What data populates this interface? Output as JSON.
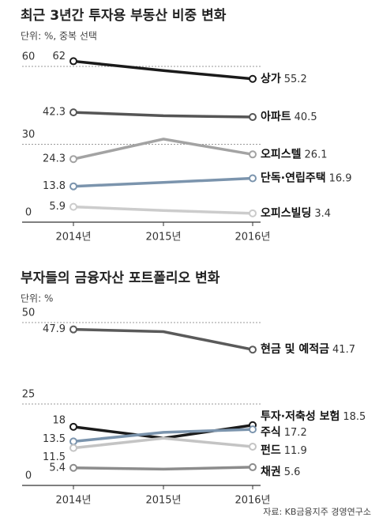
{
  "chart_data": [
    {
      "type": "line",
      "title": "최근 3년간 투자용 부동산 비중 변화",
      "subtitle": "단위: %, 중복 선택",
      "categories": [
        "2014년",
        "2015년",
        "2016년"
      ],
      "ylim": [
        0,
        60
      ],
      "yticks": [
        0,
        30,
        60
      ],
      "grid": true,
      "series": [
        {
          "name": "상가",
          "color": "#1a1a1a",
          "values": [
            62,
            58.4,
            55.2
          ]
        },
        {
          "name": "아파트",
          "color": "#555555",
          "values": [
            42.3,
            41,
            40.5
          ]
        },
        {
          "name": "오피스텔",
          "color": "#a3a3a3",
          "values": [
            24.3,
            32,
            26.1
          ]
        },
        {
          "name": "단독·연립주택",
          "color": "#7b94ad",
          "values": [
            13.8,
            15.3,
            16.9
          ]
        },
        {
          "name": "오피스빌딩",
          "color": "#cccccc",
          "values": [
            5.9,
            4.5,
            3.4
          ]
        }
      ]
    },
    {
      "type": "line",
      "title": "부자들의 금융자산 포트폴리오 변화",
      "subtitle": "단위: %",
      "categories": [
        "2014년",
        "2015년",
        "2016년"
      ],
      "ylim": [
        0,
        50
      ],
      "yticks": [
        0,
        25,
        50
      ],
      "grid": true,
      "series": [
        {
          "name": "현금 및 예적금",
          "color": "#5a5a5a",
          "values": [
            47.9,
            47.2,
            41.7
          ]
        },
        {
          "name": "투자·저축성 보험",
          "color": "#1a1a1a",
          "values": [
            18,
            14.5,
            18.5
          ]
        },
        {
          "name": "주식",
          "color": "#7b94ad",
          "values": [
            13.5,
            16.3,
            17.2
          ]
        },
        {
          "name": "펀드",
          "color": "#c4c4c4",
          "values": [
            11.5,
            14.5,
            11.9
          ]
        },
        {
          "name": "채권",
          "color": "#8c8c8c",
          "values": [
            5.4,
            5.0,
            5.6
          ]
        }
      ]
    }
  ],
  "source": "자료: KB금융지주 경영연구소"
}
